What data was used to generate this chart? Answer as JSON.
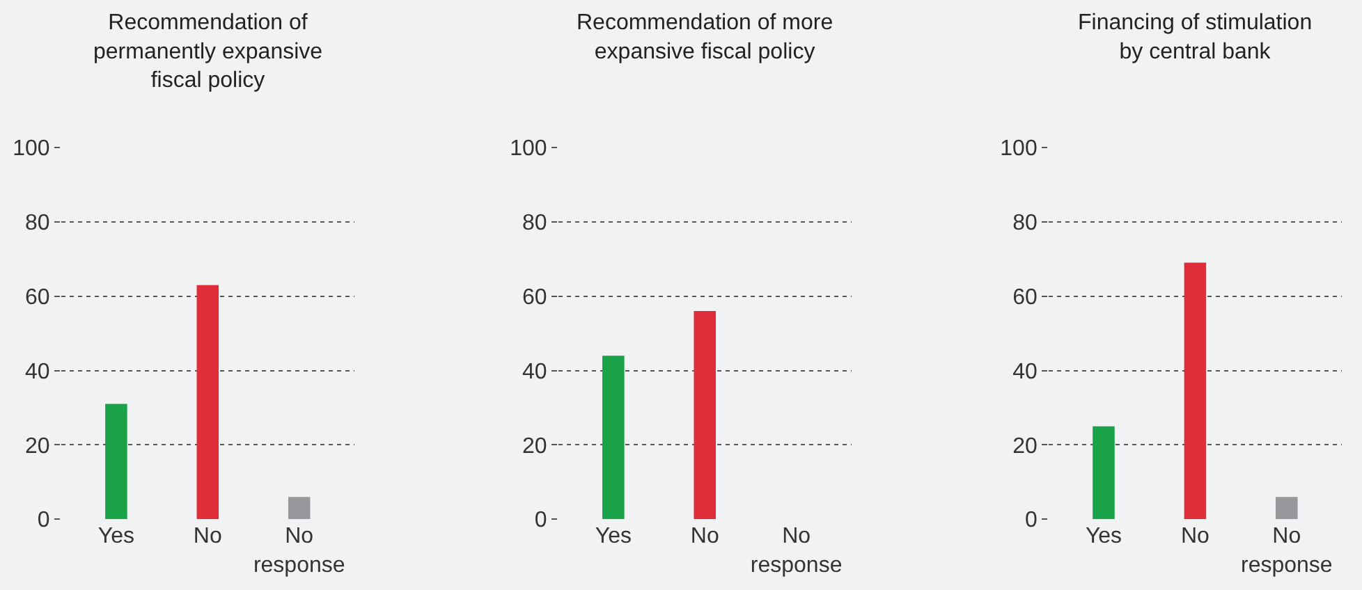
{
  "chart_data": [
    {
      "type": "bar",
      "title": "Recommendation of permanently expansive fiscal policy",
      "categories": [
        "Yes",
        "No",
        "No response"
      ],
      "values": [
        31,
        63,
        6
      ],
      "colors": [
        "#1ba34a",
        "#e02d3a",
        "#97989b"
      ],
      "ylim": [
        0,
        100
      ],
      "yticks": [
        0,
        20,
        40,
        60,
        80,
        100
      ],
      "grid": "y"
    },
    {
      "type": "bar",
      "title": "Recommendation of more expansive fiscal policy",
      "categories": [
        "Yes",
        "No",
        "No response"
      ],
      "values": [
        44,
        56,
        0
      ],
      "colors": [
        "#1ba34a",
        "#e02d3a",
        "#e02d3a"
      ],
      "ylim": [
        0,
        100
      ],
      "yticks": [
        0,
        20,
        40,
        60,
        80,
        100
      ],
      "grid": "y"
    },
    {
      "type": "bar",
      "title": "Financing of stimulation by central bank",
      "categories": [
        "Yes",
        "No",
        "No response"
      ],
      "values": [
        25,
        69,
        6
      ],
      "colors": [
        "#1ba34a",
        "#e02d3a",
        "#97989b"
      ],
      "ylim": [
        0,
        100
      ],
      "yticks": [
        0,
        20,
        40,
        60,
        80,
        100
      ],
      "grid": "y"
    }
  ]
}
